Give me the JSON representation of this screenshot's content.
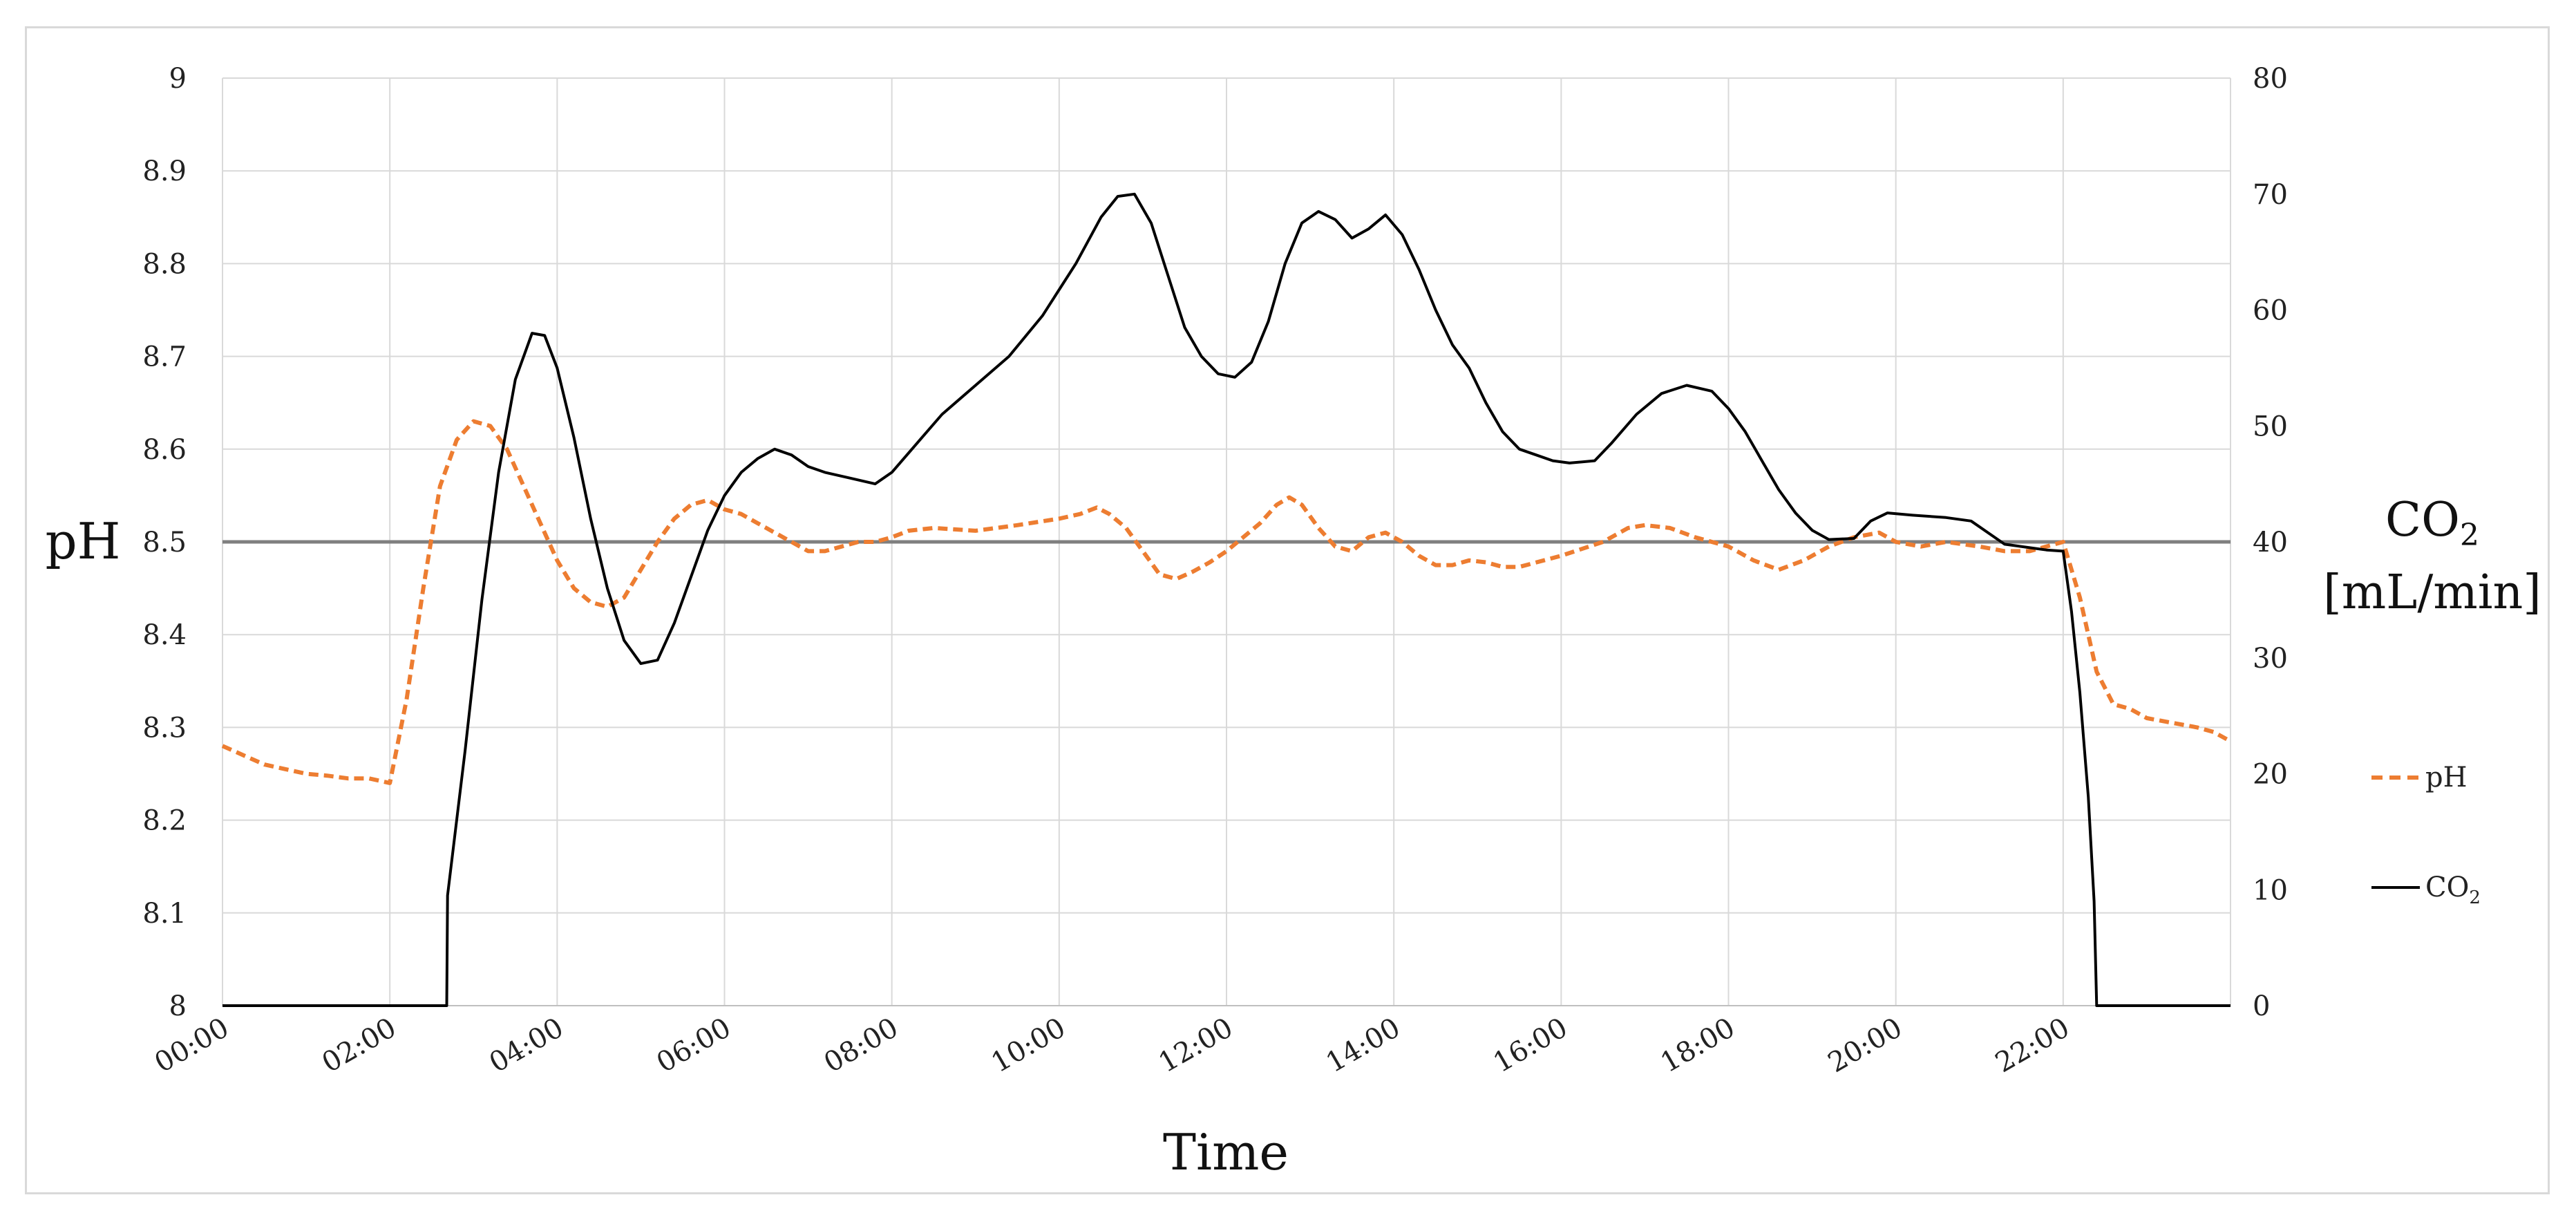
{
  "chart_data": {
    "type": "line",
    "xlabel": "Time",
    "ylabel_left": "pH",
    "ylabel_right_main": "CO",
    "ylabel_right_sub": "2",
    "ylabel_right_unit": "[mL/min]",
    "x_tick_labels": [
      "00:00",
      "02:00",
      "04:00",
      "06:00",
      "08:00",
      "10:00",
      "12:00",
      "14:00",
      "16:00",
      "18:00",
      "20:00",
      "22:00"
    ],
    "x_range_hours": [
      0,
      24
    ],
    "y_left_range": [
      8,
      9
    ],
    "y_left_ticks": [
      "8",
      "8.1",
      "8.2",
      "8.3",
      "8.4",
      "8.5",
      "8.6",
      "8.7",
      "8.8",
      "8.9",
      "9"
    ],
    "y_right_range": [
      0,
      80
    ],
    "y_right_ticks": [
      "0",
      "10",
      "20",
      "30",
      "40",
      "50",
      "60",
      "70",
      "80"
    ],
    "grid": true,
    "legend_position": "right",
    "reference_line": {
      "axis": "left",
      "value": 8.5,
      "color": "#7f7f7f"
    },
    "series": [
      {
        "name": "pH",
        "axis": "left",
        "color": "#ed7d31",
        "style": "dashed",
        "points": [
          [
            0,
            8.28
          ],
          [
            0.25,
            8.27
          ],
          [
            0.5,
            8.26
          ],
          [
            0.75,
            8.255
          ],
          [
            1,
            8.25
          ],
          [
            1.25,
            8.248
          ],
          [
            1.5,
            8.245
          ],
          [
            1.75,
            8.245
          ],
          [
            2,
            8.24
          ],
          [
            2.2,
            8.33
          ],
          [
            2.4,
            8.45
          ],
          [
            2.6,
            8.56
          ],
          [
            2.8,
            8.61
          ],
          [
            3.0,
            8.63
          ],
          [
            3.2,
            8.625
          ],
          [
            3.4,
            8.6
          ],
          [
            3.6,
            8.56
          ],
          [
            3.8,
            8.52
          ],
          [
            4.0,
            8.48
          ],
          [
            4.2,
            8.45
          ],
          [
            4.4,
            8.435
          ],
          [
            4.6,
            8.43
          ],
          [
            4.8,
            8.44
          ],
          [
            5.0,
            8.47
          ],
          [
            5.2,
            8.5
          ],
          [
            5.4,
            8.525
          ],
          [
            5.6,
            8.54
          ],
          [
            5.8,
            8.545
          ],
          [
            6.0,
            8.535
          ],
          [
            6.2,
            8.53
          ],
          [
            6.4,
            8.52
          ],
          [
            6.6,
            8.51
          ],
          [
            6.8,
            8.5
          ],
          [
            7.0,
            8.49
          ],
          [
            7.2,
            8.49
          ],
          [
            7.4,
            8.495
          ],
          [
            7.6,
            8.5
          ],
          [
            7.8,
            8.5
          ],
          [
            8.0,
            8.505
          ],
          [
            8.2,
            8.512
          ],
          [
            8.5,
            8.515
          ],
          [
            9.0,
            8.512
          ],
          [
            9.5,
            8.518
          ],
          [
            10.0,
            8.525
          ],
          [
            10.25,
            8.53
          ],
          [
            10.45,
            8.537
          ],
          [
            10.6,
            8.53
          ],
          [
            10.8,
            8.515
          ],
          [
            11.0,
            8.49
          ],
          [
            11.2,
            8.465
          ],
          [
            11.4,
            8.46
          ],
          [
            11.6,
            8.468
          ],
          [
            11.8,
            8.478
          ],
          [
            12.0,
            8.49
          ],
          [
            12.2,
            8.505
          ],
          [
            12.4,
            8.52
          ],
          [
            12.6,
            8.54
          ],
          [
            12.75,
            8.548
          ],
          [
            12.9,
            8.54
          ],
          [
            13.1,
            8.515
          ],
          [
            13.3,
            8.495
          ],
          [
            13.5,
            8.49
          ],
          [
            13.7,
            8.505
          ],
          [
            13.9,
            8.51
          ],
          [
            14.1,
            8.5
          ],
          [
            14.3,
            8.485
          ],
          [
            14.5,
            8.475
          ],
          [
            14.7,
            8.475
          ],
          [
            14.9,
            8.48
          ],
          [
            15.1,
            8.478
          ],
          [
            15.3,
            8.473
          ],
          [
            15.5,
            8.473
          ],
          [
            16.0,
            8.485
          ],
          [
            16.5,
            8.5
          ],
          [
            16.8,
            8.515
          ],
          [
            17.0,
            8.518
          ],
          [
            17.3,
            8.515
          ],
          [
            17.6,
            8.505
          ],
          [
            18.0,
            8.495
          ],
          [
            18.3,
            8.48
          ],
          [
            18.6,
            8.47
          ],
          [
            18.9,
            8.48
          ],
          [
            19.2,
            8.495
          ],
          [
            19.5,
            8.505
          ],
          [
            19.8,
            8.51
          ],
          [
            20.0,
            8.5
          ],
          [
            20.3,
            8.495
          ],
          [
            20.6,
            8.5
          ],
          [
            21.0,
            8.495
          ],
          [
            21.3,
            8.49
          ],
          [
            21.6,
            8.49
          ],
          [
            21.8,
            8.495
          ],
          [
            22.0,
            8.5
          ],
          [
            22.2,
            8.44
          ],
          [
            22.4,
            8.36
          ],
          [
            22.6,
            8.325
          ],
          [
            22.8,
            8.32
          ],
          [
            23.0,
            8.31
          ],
          [
            23.3,
            8.305
          ],
          [
            23.6,
            8.3
          ],
          [
            23.8,
            8.295
          ],
          [
            24.0,
            8.285
          ]
        ]
      },
      {
        "name": "CO",
        "name_sub": "2",
        "axis": "right",
        "color": "#000000",
        "style": "solid",
        "points": [
          [
            0,
            0
          ],
          [
            2.68,
            0
          ],
          [
            2.69,
            9.5
          ],
          [
            2.9,
            22
          ],
          [
            3.1,
            35
          ],
          [
            3.3,
            46
          ],
          [
            3.5,
            54
          ],
          [
            3.7,
            58
          ],
          [
            3.85,
            57.8
          ],
          [
            4.0,
            55
          ],
          [
            4.2,
            49
          ],
          [
            4.4,
            42
          ],
          [
            4.6,
            36
          ],
          [
            4.8,
            31.5
          ],
          [
            5.0,
            29.5
          ],
          [
            5.2,
            29.8
          ],
          [
            5.4,
            33
          ],
          [
            5.6,
            37
          ],
          [
            5.8,
            41
          ],
          [
            6.0,
            44
          ],
          [
            6.2,
            46
          ],
          [
            6.4,
            47.2
          ],
          [
            6.6,
            48
          ],
          [
            6.8,
            47.5
          ],
          [
            7.0,
            46.5
          ],
          [
            7.2,
            46
          ],
          [
            7.5,
            45.5
          ],
          [
            7.8,
            45
          ],
          [
            8.0,
            46
          ],
          [
            8.3,
            48.5
          ],
          [
            8.6,
            51
          ],
          [
            9.0,
            53.5
          ],
          [
            9.4,
            56
          ],
          [
            9.8,
            59.5
          ],
          [
            10.2,
            64
          ],
          [
            10.5,
            68
          ],
          [
            10.7,
            69.8
          ],
          [
            10.9,
            70
          ],
          [
            11.1,
            67.5
          ],
          [
            11.3,
            63
          ],
          [
            11.5,
            58.5
          ],
          [
            11.7,
            56
          ],
          [
            11.9,
            54.5
          ],
          [
            12.1,
            54.2
          ],
          [
            12.3,
            55.5
          ],
          [
            12.5,
            59
          ],
          [
            12.7,
            64
          ],
          [
            12.9,
            67.5
          ],
          [
            13.1,
            68.5
          ],
          [
            13.3,
            67.8
          ],
          [
            13.5,
            66.2
          ],
          [
            13.7,
            67
          ],
          [
            13.9,
            68.2
          ],
          [
            14.1,
            66.5
          ],
          [
            14.3,
            63.5
          ],
          [
            14.5,
            60
          ],
          [
            14.7,
            57
          ],
          [
            14.9,
            55
          ],
          [
            15.1,
            52
          ],
          [
            15.3,
            49.5
          ],
          [
            15.5,
            48
          ],
          [
            15.7,
            47.5
          ],
          [
            15.9,
            47
          ],
          [
            16.1,
            46.8
          ],
          [
            16.4,
            47
          ],
          [
            16.6,
            48.5
          ],
          [
            16.9,
            51
          ],
          [
            17.2,
            52.8
          ],
          [
            17.5,
            53.5
          ],
          [
            17.8,
            53
          ],
          [
            18.0,
            51.5
          ],
          [
            18.2,
            49.5
          ],
          [
            18.4,
            47
          ],
          [
            18.6,
            44.5
          ],
          [
            18.8,
            42.5
          ],
          [
            19.0,
            41
          ],
          [
            19.2,
            40.2
          ],
          [
            19.5,
            40.3
          ],
          [
            19.7,
            41.8
          ],
          [
            19.9,
            42.5
          ],
          [
            20.2,
            42.3
          ],
          [
            20.6,
            42.1
          ],
          [
            20.9,
            41.8
          ],
          [
            21.1,
            40.8
          ],
          [
            21.3,
            39.8
          ],
          [
            21.6,
            39.5
          ],
          [
            21.8,
            39.3
          ],
          [
            22.0,
            39.2
          ],
          [
            22.1,
            34
          ],
          [
            22.2,
            27
          ],
          [
            22.3,
            18
          ],
          [
            22.37,
            9
          ],
          [
            22.4,
            0
          ],
          [
            24.0,
            0
          ]
        ]
      }
    ]
  }
}
